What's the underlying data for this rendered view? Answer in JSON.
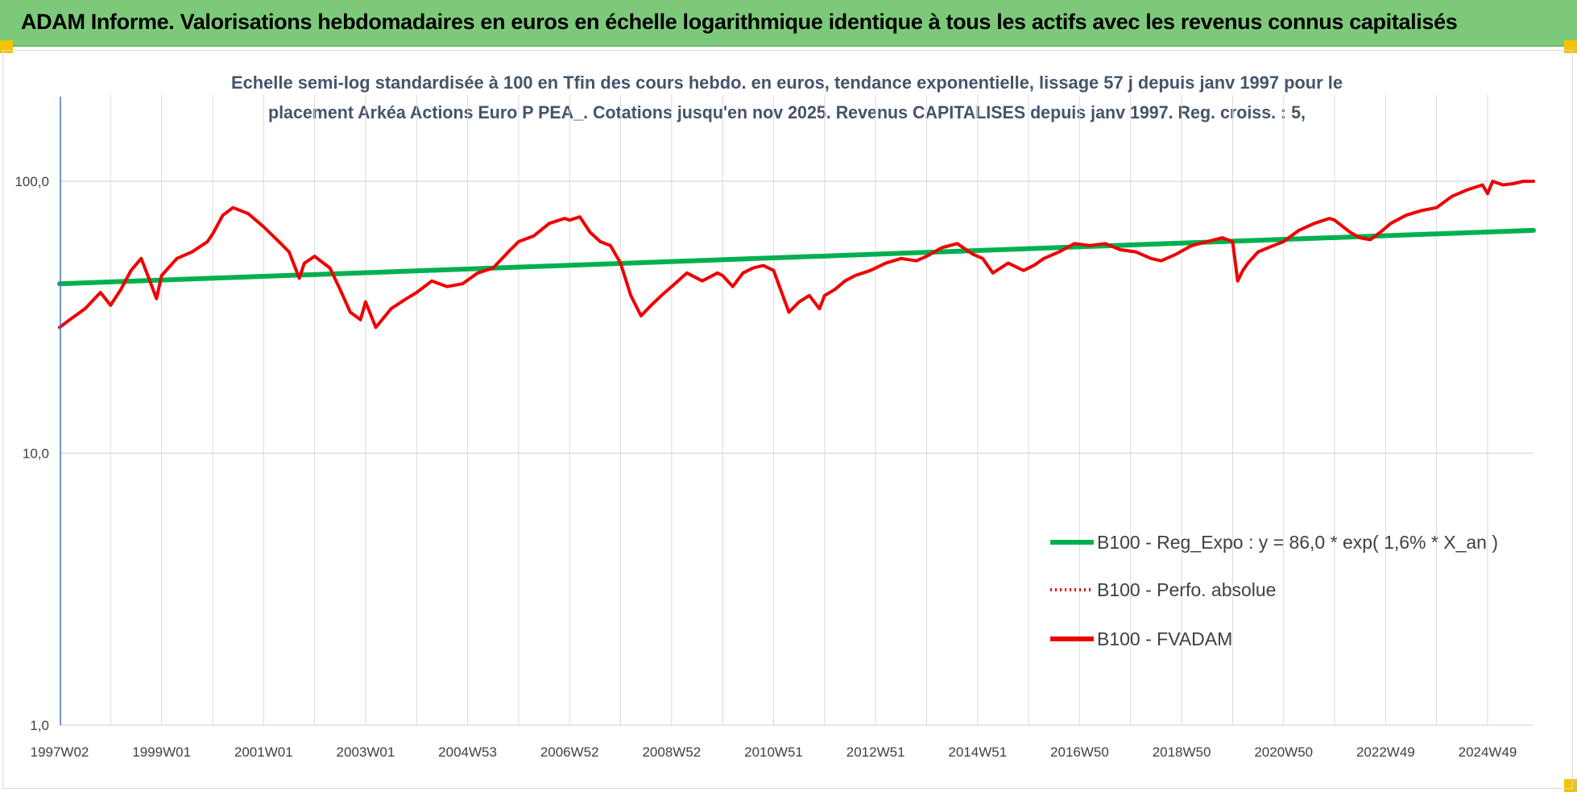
{
  "header": {
    "title": "ADAM Informe. Valorisations hebdomadaires en euros en échelle logarithmique identique à tous les actifs avec les revenus connus capitalisés"
  },
  "colors": {
    "header_bg": "#7dc97a",
    "corner_accent": "#f5c200",
    "regression": "#00b050",
    "fvadam": "#ee0000",
    "perf_absolue": "#ee0000",
    "subtitle": "#44546a",
    "axis_line": "#4472c4"
  },
  "chart_data": {
    "type": "line",
    "subtitle": [
      "Echelle semi-log standardisée à 100 en Tfin des cours hebdo. en euros, tendance exponentielle, lissage 57 j depuis janv 1997 pour le",
      "placement Arkéa Actions Euro P PEA_. Cotations jusqu'en nov 2025. Revenus CAPITALISES depuis janv 1997. Reg. croiss. : 5,"
    ],
    "y_scale": "log",
    "ylim": [
      1,
      100
    ],
    "ytick_values": [
      1,
      10,
      100
    ],
    "ytick_labels": [
      "1,0",
      "10,0",
      "100,0"
    ],
    "xlim": [
      1997.0,
      2025.9
    ],
    "xtick_labels": [
      "1997W02",
      "1999W01",
      "2001W01",
      "2003W01",
      "2004W53",
      "2006W52",
      "2008W52",
      "2010W51",
      "2012W51",
      "2014W51",
      "2016W50",
      "2018W50",
      "2020W50",
      "2022W49",
      "2024W49"
    ],
    "xtick_years": [
      1997.0,
      1999.0,
      2001.0,
      2003.0,
      2005.0,
      2007.0,
      2009.0,
      2011.0,
      2013.0,
      2015.0,
      2017.0,
      2019.0,
      2021.0,
      2023.0,
      2025.0
    ],
    "grid": true,
    "legend_position": "right",
    "legend": [
      "B100 - Reg_Expo : y = 86,0 * exp( 1,6% *  X_an )",
      "B100 - Perfo. absolue",
      "B100 - FVADAM"
    ],
    "series": [
      {
        "name": "B100 - Reg_Expo : y = 86,0 * exp( 1,6% *  X_an )",
        "style": "solid-thick",
        "x": [
          1997.0,
          2025.9
        ],
        "y": [
          42.0,
          66.0
        ]
      },
      {
        "name": "B100 - Perfo. absolue",
        "style": "dotted",
        "x": [],
        "y": []
      },
      {
        "name": "B100 - FVADAM",
        "style": "solid-thick",
        "x": [
          1997.0,
          1997.2,
          1997.5,
          1997.8,
          1998.0,
          1998.2,
          1998.4,
          1998.6,
          1998.75,
          1998.9,
          1999.0,
          1999.3,
          1999.6,
          1999.9,
          2000.0,
          2000.2,
          2000.4,
          2000.7,
          2001.0,
          2001.3,
          2001.5,
          2001.7,
          2001.8,
          2002.0,
          2002.3,
          2002.5,
          2002.7,
          2002.9,
          2003.0,
          2003.2,
          2003.5,
          2003.8,
          2004.0,
          2004.3,
          2004.6,
          2004.9,
          2005.2,
          2005.5,
          2005.8,
          2006.0,
          2006.3,
          2006.6,
          2006.9,
          2007.0,
          2007.2,
          2007.4,
          2007.6,
          2007.8,
          2008.0,
          2008.2,
          2008.4,
          2008.6,
          2008.8,
          2009.0,
          2009.3,
          2009.6,
          2009.9,
          2010.0,
          2010.2,
          2010.4,
          2010.6,
          2010.8,
          2011.0,
          2011.3,
          2011.5,
          2011.7,
          2011.9,
          2012.0,
          2012.2,
          2012.4,
          2012.6,
          2012.9,
          2013.2,
          2013.5,
          2013.8,
          2014.0,
          2014.3,
          2014.6,
          2014.9,
          2015.1,
          2015.3,
          2015.6,
          2015.9,
          2016.1,
          2016.3,
          2016.6,
          2016.9,
          2017.2,
          2017.5,
          2017.8,
          2018.1,
          2018.4,
          2018.6,
          2018.9,
          2019.2,
          2019.5,
          2019.8,
          2020.0,
          2020.1,
          2020.2,
          2020.3,
          2020.5,
          2020.8,
          2021.0,
          2021.3,
          2021.6,
          2021.9,
          2022.0,
          2022.3,
          2022.5,
          2022.7,
          2022.9,
          2023.1,
          2023.4,
          2023.7,
          2024.0,
          2024.3,
          2024.6,
          2024.9,
          2025.0,
          2025.1,
          2025.3,
          2025.5,
          2025.7,
          2025.9
        ],
        "y": [
          29.0,
          31.0,
          34.0,
          39.0,
          35.0,
          40.0,
          47.0,
          52.0,
          44.0,
          37.0,
          45.0,
          52.0,
          55.0,
          60.0,
          64.0,
          75.0,
          80.0,
          76.0,
          68.0,
          60.0,
          55.0,
          44.0,
          50.0,
          53.0,
          48.0,
          40.0,
          33.0,
          31.0,
          36.0,
          29.0,
          34.0,
          37.0,
          39.0,
          43.0,
          41.0,
          42.0,
          46.0,
          48.0,
          55.0,
          60.0,
          63.0,
          70.0,
          73.0,
          72.0,
          74.0,
          65.0,
          60.0,
          58.0,
          50.0,
          38.0,
          32.0,
          35.0,
          38.0,
          41.0,
          46.0,
          43.0,
          46.0,
          45.0,
          41.0,
          46.0,
          48.0,
          49.0,
          47.0,
          33.0,
          36.0,
          38.0,
          34.0,
          38.0,
          40.0,
          43.0,
          45.0,
          47.0,
          50.0,
          52.0,
          51.0,
          53.0,
          57.0,
          59.0,
          54.0,
          52.0,
          46.0,
          50.0,
          47.0,
          49.0,
          52.0,
          55.0,
          59.0,
          58.0,
          59.0,
          56.0,
          55.0,
          52.0,
          51.0,
          54.0,
          58.0,
          60.0,
          62.0,
          60.0,
          43.0,
          47.0,
          50.0,
          55.0,
          58.0,
          60.0,
          66.0,
          70.0,
          73.0,
          72.0,
          65.0,
          62.0,
          61.0,
          65.0,
          70.0,
          75.0,
          78.0,
          80.0,
          88.0,
          93.0,
          97.0,
          90.0,
          100.0,
          97.0,
          98.0,
          100.0,
          100.0
        ]
      }
    ]
  }
}
